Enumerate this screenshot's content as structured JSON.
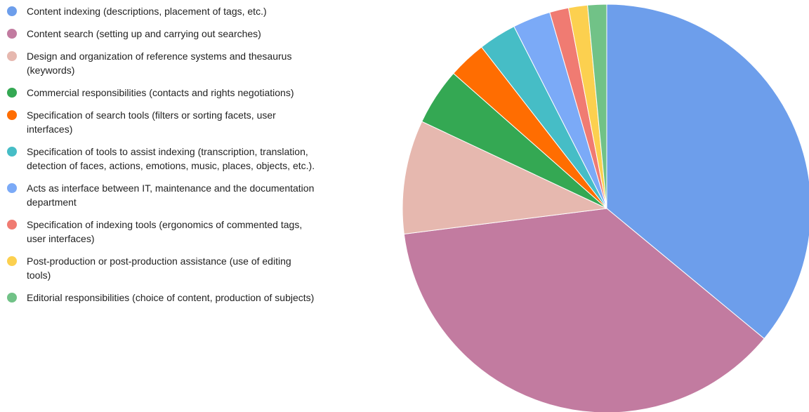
{
  "chart_data": {
    "type": "pie",
    "title": "",
    "legend_position": "left",
    "slices": [
      {
        "label": "Content indexing (descriptions, placement of tags, etc.)",
        "value": 36,
        "color": "#6d9eeb"
      },
      {
        "label": "Content search (setting up and carrying out searches)",
        "value": 37,
        "color": "#c27ba0"
      },
      {
        "label": "Design and organization of reference systems and thesaurus\n(keywords)",
        "value": 9,
        "color": "#e6b8af"
      },
      {
        "label": "Commercial responsibilities (contacts and rights negotiations)",
        "value": 4.5,
        "color": "#34a853"
      },
      {
        "label": "Specification of search tools (filters or sorting facets, user\ninterfaces)",
        "value": 3,
        "color": "#ff6d01"
      },
      {
        "label": "Specification of tools to assist indexing (transcription, translation,\ndetection of faces, actions, emotions, music, places, objects, etc.).",
        "value": 3,
        "color": "#46bdc6"
      },
      {
        "label": "Acts as interface between IT, maintenance and the documentation\ndepartment",
        "value": 3,
        "color": "#7baaf7"
      },
      {
        "label": "Specification of indexing tools (ergonomics of commented tags,\nuser interfaces)",
        "value": 1.5,
        "color": "#f07b72"
      },
      {
        "label": "Post-production or post-production assistance (use of editing\ntools)",
        "value": 1.5,
        "color": "#fcd04f"
      },
      {
        "label": "Editorial responsibilities (choice of content, production of subjects)",
        "value": 1.5,
        "color": "#71c287"
      }
    ]
  }
}
